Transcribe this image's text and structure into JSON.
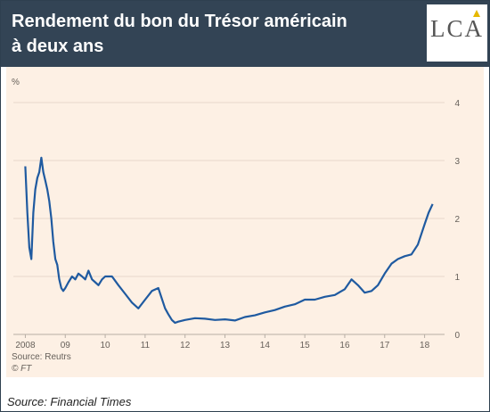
{
  "header": {
    "title_line1": "Rendement du bon du Trésor américain",
    "title_line2": "à deux ans",
    "logo": "LCA",
    "bg_color": "#334455"
  },
  "chart_data": {
    "type": "line",
    "title": "Rendement du bon du Trésor américain à deux ans",
    "ylabel": "%",
    "ylim": [
      0,
      4
    ],
    "yticks": [
      "0",
      "1",
      "2",
      "3",
      "4"
    ],
    "xticks": [
      "2008",
      "09",
      "10",
      "11",
      "12",
      "13",
      "14",
      "15",
      "16",
      "17",
      "18"
    ],
    "grid": true,
    "y_axis_position": "right",
    "series": [
      {
        "color": "#1f5aa0",
        "x": [
          2008.0,
          2008.05,
          2008.1,
          2008.15,
          2008.2,
          2008.25,
          2008.3,
          2008.35,
          2008.4,
          2008.45,
          2008.5,
          2008.55,
          2008.6,
          2008.65,
          2008.7,
          2008.75,
          2008.8,
          2008.85,
          2008.9,
          2008.95,
          2009.0,
          2009.08,
          2009.17,
          2009.25,
          2009.33,
          2009.42,
          2009.5,
          2009.58,
          2009.67,
          2009.75,
          2009.83,
          2009.92,
          2010.0,
          2010.17,
          2010.33,
          2010.5,
          2010.67,
          2010.83,
          2011.0,
          2011.17,
          2011.33,
          2011.5,
          2011.58,
          2011.67,
          2011.75,
          2011.83,
          2012.0,
          2012.25,
          2012.5,
          2012.75,
          2013.0,
          2013.25,
          2013.5,
          2013.75,
          2014.0,
          2014.25,
          2014.5,
          2014.75,
          2015.0,
          2015.25,
          2015.5,
          2015.75,
          2016.0,
          2016.17,
          2016.33,
          2016.5,
          2016.67,
          2016.83,
          2017.0,
          2017.17,
          2017.33,
          2017.5,
          2017.67,
          2017.83,
          2018.0,
          2018.1,
          2018.2
        ],
        "y": [
          2.9,
          2.1,
          1.5,
          1.3,
          2.1,
          2.5,
          2.7,
          2.8,
          3.05,
          2.8,
          2.65,
          2.5,
          2.3,
          2.0,
          1.6,
          1.3,
          1.2,
          0.95,
          0.8,
          0.75,
          0.8,
          0.9,
          1.0,
          0.95,
          1.05,
          1.0,
          0.95,
          1.1,
          0.95,
          0.9,
          0.85,
          0.95,
          1.0,
          1.0,
          0.85,
          0.7,
          0.55,
          0.45,
          0.6,
          0.75,
          0.8,
          0.45,
          0.35,
          0.25,
          0.2,
          0.22,
          0.25,
          0.28,
          0.27,
          0.25,
          0.26,
          0.24,
          0.3,
          0.33,
          0.38,
          0.42,
          0.48,
          0.52,
          0.6,
          0.6,
          0.65,
          0.68,
          0.78,
          0.95,
          0.85,
          0.72,
          0.75,
          0.85,
          1.05,
          1.22,
          1.3,
          1.35,
          1.38,
          1.55,
          1.9,
          2.1,
          2.25
        ]
      }
    ],
    "source": "Source: Reutrs",
    "credit": "© FT"
  },
  "footer": {
    "source": "Source: Financial Times"
  }
}
